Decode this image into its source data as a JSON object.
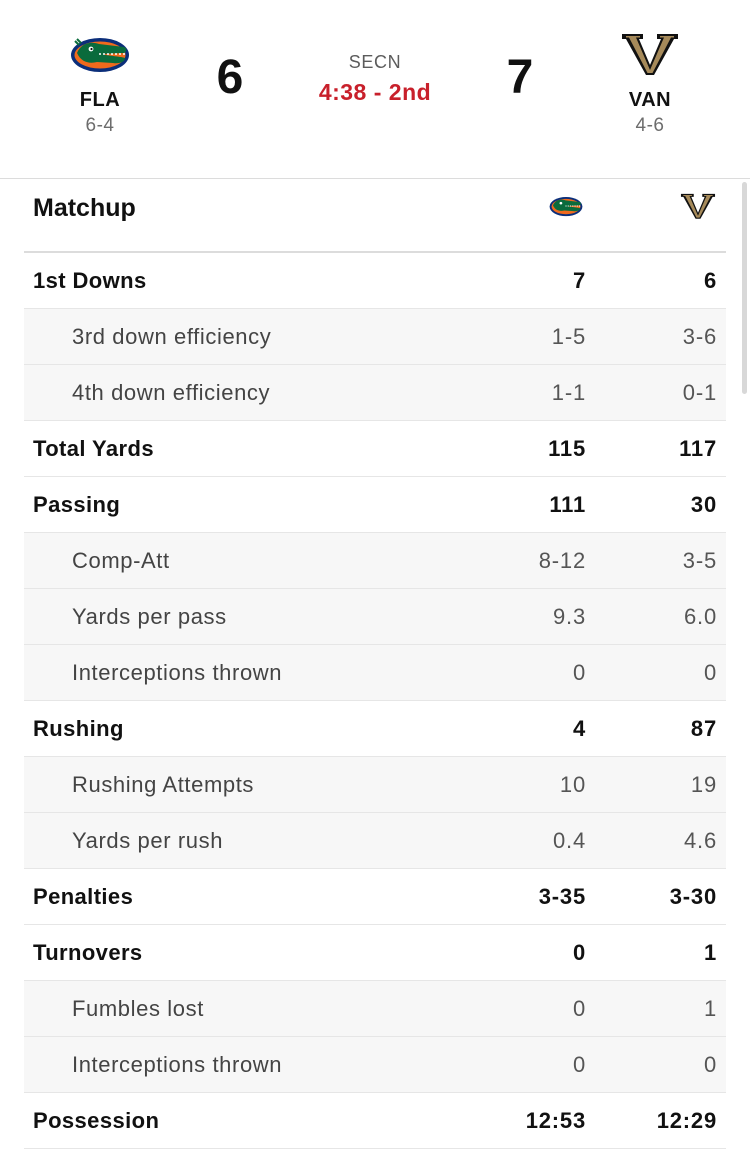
{
  "game": {
    "away": {
      "abbr": "FLA",
      "record": "6-4",
      "score": "6",
      "logo": "florida-gator-logo"
    },
    "home": {
      "abbr": "VAN",
      "record": "4-6",
      "score": "7",
      "logo": "vanderbilt-v-logo"
    },
    "network": "SECN",
    "clock": "4:38 - 2nd",
    "colors": {
      "clock": "#c8202b",
      "gator_green": "#0a6b3c",
      "gator_orange": "#f06a1d",
      "florida_blue": "#0b2e7a",
      "vandy_gold": "#a68a5a"
    }
  },
  "matchup": {
    "title": "Matchup",
    "rows": [
      {
        "label": "1st Downs",
        "away": "7",
        "home": "6",
        "type": "main"
      },
      {
        "label": "3rd down efficiency",
        "away": "1-5",
        "home": "3-6",
        "type": "sub"
      },
      {
        "label": "4th down efficiency",
        "away": "1-1",
        "home": "0-1",
        "type": "sub"
      },
      {
        "label": "Total Yards",
        "away": "115",
        "home": "117",
        "type": "main"
      },
      {
        "label": "Passing",
        "away": "111",
        "home": "30",
        "type": "main"
      },
      {
        "label": "Comp-Att",
        "away": "8-12",
        "home": "3-5",
        "type": "sub"
      },
      {
        "label": "Yards per pass",
        "away": "9.3",
        "home": "6.0",
        "type": "sub"
      },
      {
        "label": "Interceptions thrown",
        "away": "0",
        "home": "0",
        "type": "sub"
      },
      {
        "label": "Rushing",
        "away": "4",
        "home": "87",
        "type": "main"
      },
      {
        "label": "Rushing Attempts",
        "away": "10",
        "home": "19",
        "type": "sub"
      },
      {
        "label": "Yards per rush",
        "away": "0.4",
        "home": "4.6",
        "type": "sub"
      },
      {
        "label": "Penalties",
        "away": "3-35",
        "home": "3-30",
        "type": "main"
      },
      {
        "label": "Turnovers",
        "away": "0",
        "home": "1",
        "type": "main"
      },
      {
        "label": "Fumbles lost",
        "away": "0",
        "home": "1",
        "type": "sub"
      },
      {
        "label": "Interceptions thrown",
        "away": "0",
        "home": "0",
        "type": "sub"
      },
      {
        "label": "Possession",
        "away": "12:53",
        "home": "12:29",
        "type": "main"
      }
    ]
  }
}
